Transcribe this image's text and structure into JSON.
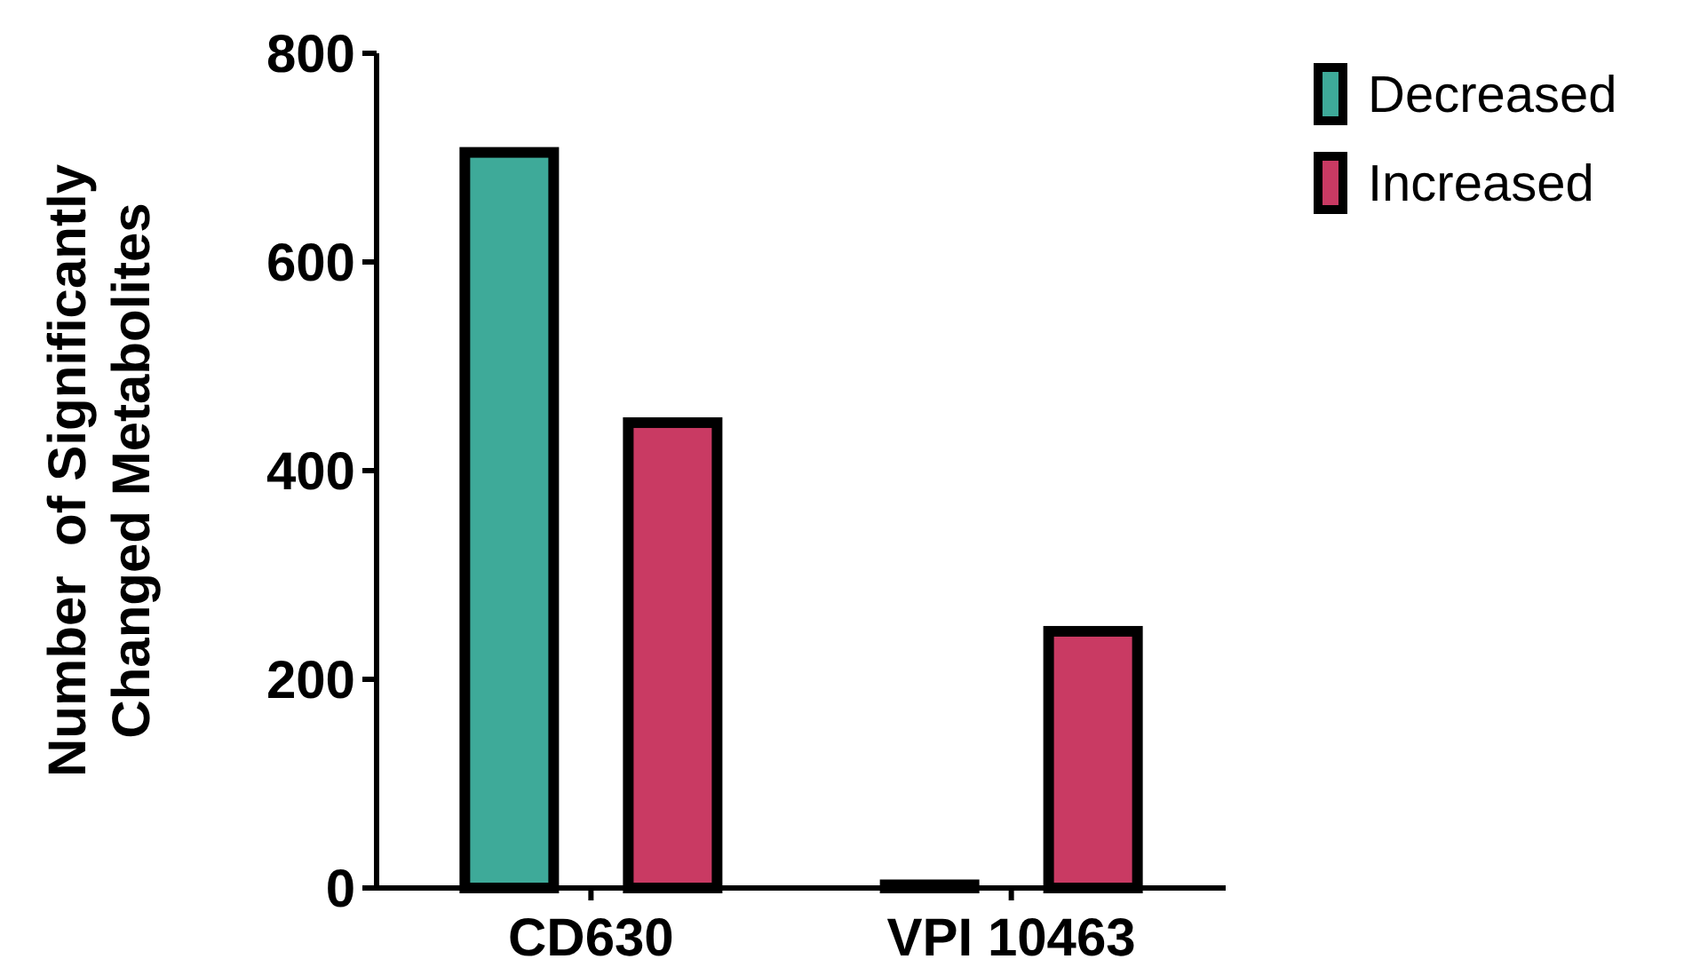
{
  "chart_data": {
    "type": "bar",
    "ylabel": "Number  of Significantly\nChanged Metabolites",
    "categories": [
      "CD630",
      "VPI 10463"
    ],
    "series": [
      {
        "name": "Decreased",
        "color": "#3eaa99",
        "values": [
          705,
          3
        ]
      },
      {
        "name": "Increased",
        "color": "#c93a63",
        "values": [
          446,
          246
        ]
      }
    ],
    "ylim": [
      0,
      800
    ],
    "yticks": [
      0,
      200,
      400,
      600,
      800
    ],
    "grid": false,
    "legend": "top right"
  }
}
